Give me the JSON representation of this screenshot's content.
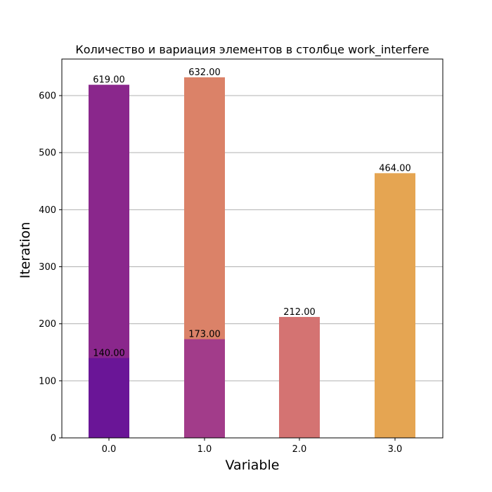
{
  "chart_data": {
    "type": "bar",
    "title": "Количество и вариация элементов в столбце work_interfere",
    "xlabel": "Variable",
    "ylabel": "Iteration",
    "categories": [
      "0.0",
      "1.0",
      "2.0",
      "3.0"
    ],
    "ylim": [
      0,
      660
    ],
    "yticks": [
      "0",
      "100",
      "200",
      "300",
      "400",
      "500",
      "600"
    ],
    "grid": "horizontal",
    "bars": [
      {
        "x": "0.0",
        "value": 619,
        "label": "619.00",
        "color": "#8a278c"
      },
      {
        "x": "0.0",
        "value": 140,
        "label": "140.00",
        "color": "#6a1597"
      },
      {
        "x": "1.0",
        "value": 632,
        "label": "632.00",
        "color": "#db8268"
      },
      {
        "x": "1.0",
        "value": 173,
        "label": "173.00",
        "color": "#a23c8a"
      },
      {
        "x": "2.0",
        "value": 212,
        "label": "212.00",
        "color": "#d47372"
      },
      {
        "x": "3.0",
        "value": 464,
        "label": "464.00",
        "color": "#e5a552"
      }
    ]
  }
}
